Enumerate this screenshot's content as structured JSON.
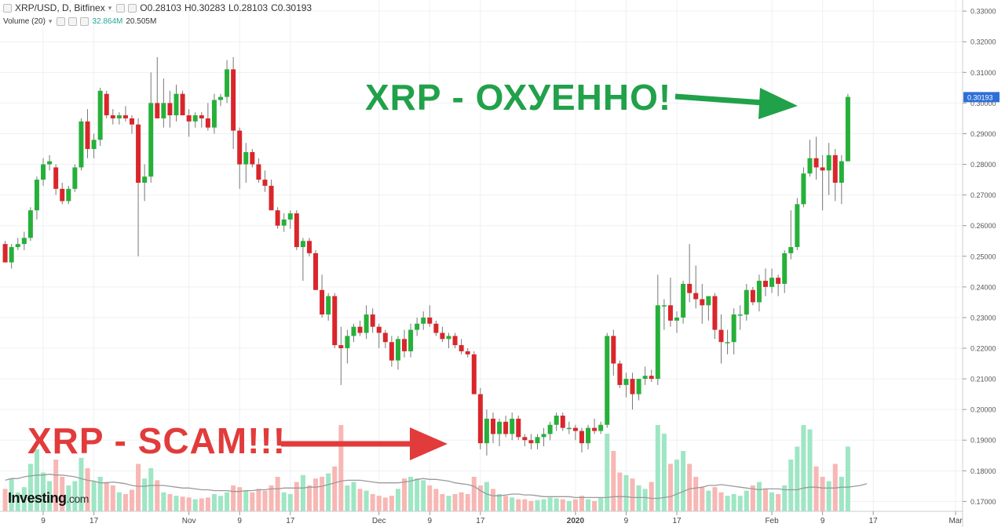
{
  "legend": {
    "title": "XRP/USD, D, Bitfinex",
    "open": "O0.28103",
    "high": "H0.30283",
    "low": "L0.28103",
    "close": "C0.30193",
    "volume_label": "Volume (20)",
    "volume_value": "32.864M",
    "volume_ma": "20.505M"
  },
  "brand": {
    "name": "Investing",
    "suffix": ".com"
  },
  "annotations": {
    "good": "XRP - ОХУЕННО!",
    "bad": "XRP - SCAM!!!"
  },
  "colors": {
    "up": "#26b03a",
    "down": "#d9262b",
    "vol_up": "#9ee6c4",
    "vol_down": "#f7b7b4",
    "arrow_good": "#21a14a",
    "arrow_bad": "#e23b3b",
    "price_tag": "#2e6fd8"
  },
  "chart_data": {
    "type": "candlestick",
    "last_price": "0.30193",
    "y_range": [
      0.1678,
      0.3326
    ],
    "y_ticks": [
      "0.17000",
      "0.18000",
      "0.19000",
      "0.20000",
      "0.21000",
      "0.22000",
      "0.23000",
      "0.24000",
      "0.25000",
      "0.26000",
      "0.27000",
      "0.28000",
      "0.29000",
      "0.30000",
      "0.31000",
      "0.32000",
      "0.33000"
    ],
    "x_ticks": [
      {
        "i": 6,
        "label": "9"
      },
      {
        "i": 14,
        "label": "17"
      },
      {
        "i": 29,
        "label": "Nov"
      },
      {
        "i": 37,
        "label": "9"
      },
      {
        "i": 45,
        "label": "17"
      },
      {
        "i": 59,
        "label": "Dec"
      },
      {
        "i": 67,
        "label": "9"
      },
      {
        "i": 75,
        "label": "17"
      },
      {
        "i": 90,
        "label": "2020"
      },
      {
        "i": 98,
        "label": "9"
      },
      {
        "i": 106,
        "label": "17"
      },
      {
        "i": 121,
        "label": "Feb"
      },
      {
        "i": 129,
        "label": "9"
      },
      {
        "i": 137,
        "label": "17"
      },
      {
        "i": 150,
        "label": "Mar"
      }
    ],
    "candles": [
      [
        0.254,
        0.255,
        0.248,
        0.248,
        0.26
      ],
      [
        0.248,
        0.254,
        0.246,
        0.253,
        0.38
      ],
      [
        0.253,
        0.256,
        0.252,
        0.254,
        0.22
      ],
      [
        0.254,
        0.258,
        0.252,
        0.256,
        0.28
      ],
      [
        0.256,
        0.266,
        0.255,
        0.265,
        0.55
      ],
      [
        0.265,
        0.276,
        0.262,
        0.275,
        0.72
      ],
      [
        0.275,
        0.282,
        0.273,
        0.28,
        0.45
      ],
      [
        0.28,
        0.283,
        0.278,
        0.281,
        0.35
      ],
      [
        0.279,
        0.28,
        0.27,
        0.272,
        0.6
      ],
      [
        0.272,
        0.274,
        0.267,
        0.268,
        0.4
      ],
      [
        0.268,
        0.273,
        0.267,
        0.272,
        0.3
      ],
      [
        0.272,
        0.28,
        0.271,
        0.279,
        0.35
      ],
      [
        0.279,
        0.295,
        0.278,
        0.294,
        0.62
      ],
      [
        0.294,
        0.298,
        0.282,
        0.285,
        0.5
      ],
      [
        0.285,
        0.29,
        0.282,
        0.288,
        0.35
      ],
      [
        0.288,
        0.305,
        0.286,
        0.304,
        0.4
      ],
      [
        0.303,
        0.304,
        0.295,
        0.296,
        0.34
      ],
      [
        0.296,
        0.298,
        0.293,
        0.295,
        0.3
      ],
      [
        0.295,
        0.297,
        0.293,
        0.296,
        0.22
      ],
      [
        0.296,
        0.299,
        0.294,
        0.295,
        0.2
      ],
      [
        0.295,
        0.296,
        0.29,
        0.293,
        0.25
      ],
      [
        0.293,
        0.295,
        0.25,
        0.274,
        0.55
      ],
      [
        0.274,
        0.28,
        0.268,
        0.276,
        0.38
      ],
      [
        0.276,
        0.31,
        0.274,
        0.3,
        0.5
      ],
      [
        0.3,
        0.315,
        0.295,
        0.295,
        0.36
      ],
      [
        0.295,
        0.308,
        0.292,
        0.3,
        0.22
      ],
      [
        0.3,
        0.304,
        0.292,
        0.296,
        0.2
      ],
      [
        0.296,
        0.306,
        0.294,
        0.303,
        0.18
      ],
      [
        0.303,
        0.304,
        0.296,
        0.296,
        0.17
      ],
      [
        0.296,
        0.298,
        0.289,
        0.294,
        0.16
      ],
      [
        0.294,
        0.297,
        0.292,
        0.296,
        0.14
      ],
      [
        0.296,
        0.297,
        0.292,
        0.295,
        0.15
      ],
      [
        0.295,
        0.3,
        0.291,
        0.292,
        0.16
      ],
      [
        0.292,
        0.303,
        0.29,
        0.301,
        0.2
      ],
      [
        0.301,
        0.303,
        0.299,
        0.302,
        0.18
      ],
      [
        0.302,
        0.314,
        0.3,
        0.311,
        0.22
      ],
      [
        0.311,
        0.315,
        0.285,
        0.291,
        0.3
      ],
      [
        0.291,
        0.292,
        0.272,
        0.28,
        0.28
      ],
      [
        0.28,
        0.287,
        0.274,
        0.284,
        0.24
      ],
      [
        0.284,
        0.285,
        0.279,
        0.28,
        0.22
      ],
      [
        0.28,
        0.282,
        0.274,
        0.275,
        0.26
      ],
      [
        0.275,
        0.278,
        0.271,
        0.273,
        0.24
      ],
      [
        0.273,
        0.275,
        0.266,
        0.265,
        0.3
      ],
      [
        0.265,
        0.266,
        0.259,
        0.26,
        0.4
      ],
      [
        0.26,
        0.264,
        0.258,
        0.262,
        0.22
      ],
      [
        0.262,
        0.265,
        0.259,
        0.264,
        0.2
      ],
      [
        0.264,
        0.265,
        0.252,
        0.253,
        0.34
      ],
      [
        0.253,
        0.256,
        0.242,
        0.255,
        0.42
      ],
      [
        0.255,
        0.256,
        0.25,
        0.251,
        0.3
      ],
      [
        0.251,
        0.252,
        0.239,
        0.239,
        0.38
      ],
      [
        0.239,
        0.244,
        0.23,
        0.231,
        0.4
      ],
      [
        0.231,
        0.238,
        0.229,
        0.237,
        0.44
      ],
      [
        0.237,
        0.238,
        0.22,
        0.221,
        0.52
      ],
      [
        0.221,
        0.227,
        0.208,
        0.22,
        1.0
      ],
      [
        0.22,
        0.226,
        0.215,
        0.224,
        0.3
      ],
      [
        0.224,
        0.228,
        0.222,
        0.227,
        0.34
      ],
      [
        0.227,
        0.229,
        0.224,
        0.225,
        0.26
      ],
      [
        0.225,
        0.234,
        0.223,
        0.231,
        0.24
      ],
      [
        0.231,
        0.233,
        0.225,
        0.227,
        0.2
      ],
      [
        0.227,
        0.228,
        0.22,
        0.225,
        0.18
      ],
      [
        0.225,
        0.226,
        0.22,
        0.222,
        0.16
      ],
      [
        0.222,
        0.224,
        0.214,
        0.216,
        0.18
      ],
      [
        0.216,
        0.224,
        0.213,
        0.223,
        0.26
      ],
      [
        0.223,
        0.226,
        0.217,
        0.219,
        0.38
      ],
      [
        0.219,
        0.228,
        0.217,
        0.226,
        0.4
      ],
      [
        0.226,
        0.23,
        0.224,
        0.228,
        0.38
      ],
      [
        0.228,
        0.232,
        0.226,
        0.23,
        0.36
      ],
      [
        0.23,
        0.234,
        0.227,
        0.228,
        0.3
      ],
      [
        0.228,
        0.229,
        0.224,
        0.225,
        0.26
      ],
      [
        0.225,
        0.227,
        0.222,
        0.223,
        0.2
      ],
      [
        0.223,
        0.225,
        0.22,
        0.224,
        0.18
      ],
      [
        0.224,
        0.225,
        0.22,
        0.221,
        0.2
      ],
      [
        0.221,
        0.223,
        0.218,
        0.219,
        0.22
      ],
      [
        0.219,
        0.22,
        0.217,
        0.218,
        0.2
      ],
      [
        0.218,
        0.219,
        0.205,
        0.205,
        0.4
      ],
      [
        0.205,
        0.207,
        0.187,
        0.189,
        0.3
      ],
      [
        0.189,
        0.2,
        0.185,
        0.197,
        0.34
      ],
      [
        0.197,
        0.199,
        0.189,
        0.192,
        0.26
      ],
      [
        0.192,
        0.197,
        0.188,
        0.196,
        0.2
      ],
      [
        0.196,
        0.198,
        0.191,
        0.192,
        0.18
      ],
      [
        0.192,
        0.199,
        0.19,
        0.197,
        0.16
      ],
      [
        0.197,
        0.198,
        0.19,
        0.191,
        0.14
      ],
      [
        0.191,
        0.192,
        0.188,
        0.19,
        0.14
      ],
      [
        0.19,
        0.192,
        0.187,
        0.189,
        0.12
      ],
      [
        0.189,
        0.192,
        0.187,
        0.191,
        0.13
      ],
      [
        0.191,
        0.194,
        0.188,
        0.192,
        0.14
      ],
      [
        0.192,
        0.196,
        0.19,
        0.195,
        0.16
      ],
      [
        0.195,
        0.199,
        0.193,
        0.198,
        0.15
      ],
      [
        0.198,
        0.199,
        0.193,
        0.194,
        0.14
      ],
      [
        0.194,
        0.196,
        0.192,
        0.194,
        0.12
      ],
      [
        0.194,
        0.195,
        0.19,
        0.193,
        0.14
      ],
      [
        0.193,
        0.194,
        0.186,
        0.189,
        0.18
      ],
      [
        0.189,
        0.195,
        0.187,
        0.194,
        0.14
      ],
      [
        0.194,
        0.197,
        0.192,
        0.193,
        0.12
      ],
      [
        0.193,
        0.196,
        0.192,
        0.195,
        0.16
      ],
      [
        0.195,
        0.225,
        0.194,
        0.224,
        0.9
      ],
      [
        0.224,
        0.226,
        0.211,
        0.215,
        0.7
      ],
      [
        0.215,
        0.216,
        0.207,
        0.208,
        0.45
      ],
      [
        0.208,
        0.212,
        0.204,
        0.21,
        0.42
      ],
      [
        0.21,
        0.212,
        0.2,
        0.205,
        0.38
      ],
      [
        0.205,
        0.21,
        0.203,
        0.21,
        0.3
      ],
      [
        0.21,
        0.214,
        0.208,
        0.211,
        0.26
      ],
      [
        0.211,
        0.213,
        0.209,
        0.21,
        0.34
      ],
      [
        0.21,
        0.244,
        0.208,
        0.234,
        1.0
      ],
      [
        0.234,
        0.236,
        0.226,
        0.234,
        0.9
      ],
      [
        0.234,
        0.243,
        0.227,
        0.229,
        0.55
      ],
      [
        0.229,
        0.232,
        0.225,
        0.23,
        0.6
      ],
      [
        0.23,
        0.242,
        0.228,
        0.241,
        0.7
      ],
      [
        0.241,
        0.254,
        0.235,
        0.238,
        0.55
      ],
      [
        0.238,
        0.247,
        0.233,
        0.236,
        0.4
      ],
      [
        0.236,
        0.241,
        0.228,
        0.234,
        0.28
      ],
      [
        0.234,
        0.237,
        0.229,
        0.237,
        0.24
      ],
      [
        0.237,
        0.238,
        0.223,
        0.226,
        0.28
      ],
      [
        0.226,
        0.231,
        0.215,
        0.222,
        0.22
      ],
      [
        0.222,
        0.226,
        0.218,
        0.222,
        0.18
      ],
      [
        0.222,
        0.233,
        0.218,
        0.231,
        0.2
      ],
      [
        0.231,
        0.234,
        0.226,
        0.231,
        0.18
      ],
      [
        0.231,
        0.241,
        0.229,
        0.239,
        0.24
      ],
      [
        0.239,
        0.24,
        0.234,
        0.235,
        0.3
      ],
      [
        0.235,
        0.244,
        0.232,
        0.242,
        0.34
      ],
      [
        0.242,
        0.246,
        0.237,
        0.24,
        0.26
      ],
      [
        0.24,
        0.246,
        0.238,
        0.243,
        0.22
      ],
      [
        0.243,
        0.244,
        0.237,
        0.241,
        0.2
      ],
      [
        0.241,
        0.252,
        0.238,
        0.251,
        0.3
      ],
      [
        0.251,
        0.265,
        0.249,
        0.253,
        0.6
      ],
      [
        0.253,
        0.269,
        0.252,
        0.267,
        0.75
      ],
      [
        0.267,
        0.279,
        0.266,
        0.277,
        1.0
      ],
      [
        0.277,
        0.288,
        0.276,
        0.282,
        0.95
      ],
      [
        0.282,
        0.289,
        0.275,
        0.279,
        0.52
      ],
      [
        0.279,
        0.283,
        0.265,
        0.278,
        0.4
      ],
      [
        0.278,
        0.287,
        0.27,
        0.283,
        0.35
      ],
      [
        0.283,
        0.285,
        0.268,
        0.274,
        0.55
      ],
      [
        0.274,
        0.283,
        0.267,
        0.281,
        0.4
      ],
      [
        0.281,
        0.303,
        0.281,
        0.302,
        0.75
      ]
    ],
    "volume_ma": [
      0.36,
      0.38,
      0.38,
      0.4,
      0.41,
      0.42,
      0.42,
      0.43,
      0.42,
      0.42,
      0.41,
      0.4,
      0.38,
      0.36,
      0.35,
      0.33,
      0.33,
      0.34,
      0.33,
      0.32,
      0.3,
      0.29,
      0.29,
      0.3,
      0.3,
      0.3,
      0.29,
      0.28,
      0.27,
      0.27,
      0.26,
      0.25,
      0.25,
      0.24,
      0.24,
      0.24,
      0.23,
      0.23,
      0.24,
      0.24,
      0.25,
      0.25,
      0.26,
      0.26,
      0.27,
      0.27,
      0.27,
      0.27,
      0.28,
      0.28,
      0.29,
      0.31,
      0.33,
      0.35,
      0.36,
      0.36,
      0.36,
      0.35,
      0.34,
      0.33,
      0.33,
      0.33,
      0.33,
      0.34,
      0.35,
      0.37,
      0.38,
      0.37,
      0.37,
      0.36,
      0.35,
      0.33,
      0.32,
      0.31,
      0.29,
      0.24,
      0.2,
      0.18,
      0.18,
      0.19,
      0.2,
      0.2,
      0.19,
      0.19,
      0.18,
      0.17,
      0.17,
      0.17,
      0.17,
      0.17,
      0.16,
      0.16,
      0.16,
      0.16,
      0.16,
      0.16,
      0.17,
      0.17,
      0.17,
      0.16,
      0.16,
      0.16,
      0.15,
      0.15,
      0.16,
      0.17,
      0.2,
      0.23,
      0.26,
      0.27,
      0.28,
      0.3,
      0.3,
      0.31,
      0.3,
      0.29,
      0.28,
      0.27,
      0.26,
      0.25,
      0.26,
      0.26,
      0.26,
      0.25,
      0.25,
      0.25,
      0.27,
      0.28,
      0.28,
      0.27,
      0.27,
      0.27,
      0.28,
      0.28,
      0.29,
      0.3,
      0.32
    ]
  }
}
